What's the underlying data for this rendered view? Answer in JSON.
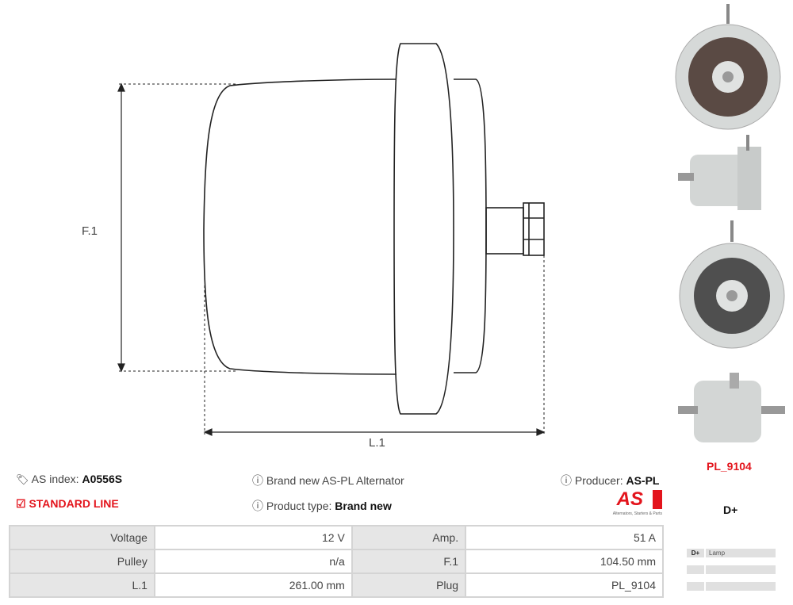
{
  "drawing": {
    "dim_f1": "F.1",
    "dim_l1": "L.1"
  },
  "info": {
    "as_index_label": "AS index:",
    "as_index_value": "A0556S",
    "line": "STANDARD LINE",
    "description": "Brand new AS-PL Alternator",
    "product_type_label": "Product type:",
    "product_type_value": "Brand new",
    "producer_label": "Producer:",
    "producer_value": "AS-PL",
    "logo_text": "AS",
    "logo_tagline": "Alternators, Starters & Parts"
  },
  "specs": [
    {
      "label": "Voltage",
      "value": "12 V",
      "label2": "Amp.",
      "value2": "51 A"
    },
    {
      "label": "Pulley",
      "value": "n/a",
      "label2": "F.1",
      "value2": "104.50 mm"
    },
    {
      "label": "L.1",
      "value": "261.00 mm",
      "label2": "Plug",
      "value2": "PL_9104"
    }
  ],
  "plug": {
    "code": "PL_9104",
    "terminal": "D+",
    "pins": [
      {
        "pin": "D+",
        "name": "Lamp"
      },
      {
        "pin": "",
        "name": ""
      },
      {
        "pin": "",
        "name": ""
      }
    ]
  },
  "colors": {
    "accent": "#e3141c",
    "table_label_bg": "#e6e6e6",
    "table_border": "#d4d4d4"
  }
}
